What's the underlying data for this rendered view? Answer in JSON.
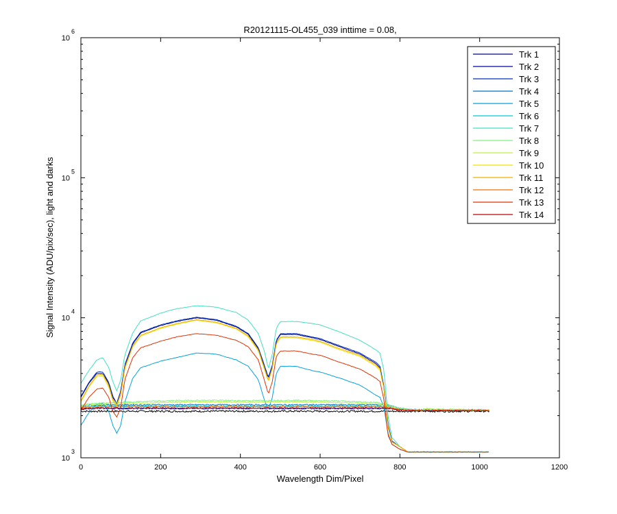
{
  "chart_data": {
    "type": "line",
    "title": "R20121115-OL455_039 inttime = 0.08,",
    "xlabel": "Wavelength Dim/Pixel",
    "ylabel": "Signal Intensity (ADU/pix/sec), light and darks",
    "xlim": [
      0,
      1200
    ],
    "ylim": [
      1000,
      1000000
    ],
    "yscale": "log",
    "grid": false,
    "legend_position": "top-right",
    "x_ticks": [
      "0",
      "200",
      "400",
      "600",
      "800",
      "1000",
      "1200"
    ],
    "y_ticks": [
      {
        "base": "10",
        "exp": "3"
      },
      {
        "base": "10",
        "exp": "4"
      },
      {
        "base": "10",
        "exp": "5"
      },
      {
        "base": "10",
        "exp": "6"
      }
    ],
    "x": [
      0,
      20,
      40,
      55,
      70,
      80,
      90,
      100,
      110,
      130,
      150,
      200,
      240,
      290,
      340,
      390,
      420,
      445,
      460,
      470,
      480,
      490,
      500,
      540,
      580,
      600,
      650,
      700,
      740,
      750,
      760,
      770,
      780,
      800,
      820,
      850,
      870,
      880,
      900,
      1024
    ],
    "series": [
      {
        "name": "Trk 1",
        "color": "#000080",
        "values": [
          2700,
          3400,
          4000,
          4000,
          3400,
          2700,
          2450,
          3000,
          4500,
          6500,
          7800,
          8800,
          9400,
          10000,
          9600,
          8600,
          7600,
          6000,
          4500,
          3700,
          4500,
          6800,
          7600,
          7600,
          7200,
          7000,
          6200,
          5500,
          4700,
          4400,
          3200,
          1700,
          1300,
          1200,
          1100,
          1100,
          1100,
          1100,
          1100,
          1100
        ]
      },
      {
        "name": "Trk 2",
        "color": "#0000b0",
        "values": [
          2200,
          2250,
          2250,
          2250,
          2250,
          2250,
          2250,
          2250,
          2250,
          2250,
          2250,
          2250,
          2250,
          2250,
          2250,
          2250,
          2250,
          2250,
          2250,
          2250,
          2250,
          2250,
          2250,
          2250,
          2250,
          2250,
          2250,
          2250,
          2250,
          2250,
          2250,
          2250,
          2250,
          2200,
          2200,
          2180,
          2180,
          2180,
          2180,
          2180
        ]
      },
      {
        "name": "Trk 3",
        "color": "#0030c0",
        "values": [
          2750,
          3450,
          4100,
          4100,
          3450,
          2750,
          2450,
          3000,
          4600,
          6600,
          7900,
          8900,
          9500,
          10100,
          9700,
          8700,
          7700,
          6100,
          4600,
          3750,
          4600,
          6900,
          7700,
          7700,
          7300,
          7100,
          6300,
          5600,
          4800,
          4500,
          3250,
          1750,
          1320,
          1200,
          1100,
          1100,
          1100,
          1100,
          1100,
          1100
        ]
      },
      {
        "name": "Trk 4",
        "color": "#0070c0",
        "values": [
          2350,
          2380,
          2380,
          2390,
          2390,
          2390,
          2390,
          2390,
          2390,
          2390,
          2390,
          2390,
          2390,
          2390,
          2390,
          2390,
          2390,
          2390,
          2390,
          2390,
          2390,
          2390,
          2390,
          2390,
          2390,
          2390,
          2390,
          2390,
          2390,
          2390,
          2390,
          2380,
          2350,
          2250,
          2220,
          2200,
          2200,
          2200,
          2200,
          2200
        ]
      },
      {
        "name": "Trk 5",
        "color": "#00a0e0",
        "values": [
          1700,
          2100,
          2400,
          2450,
          2150,
          1700,
          1500,
          1700,
          2500,
          3700,
          4400,
          4900,
          5200,
          5600,
          5500,
          5000,
          4500,
          3600,
          2600,
          2200,
          2700,
          4000,
          4500,
          4500,
          4200,
          4100,
          3700,
          3300,
          2800,
          2700,
          2300,
          1500,
          1250,
          1150,
          1100,
          1100,
          1100,
          1100,
          1100,
          1100
        ]
      },
      {
        "name": "Trk 6",
        "color": "#00c8d8",
        "values": [
          2300,
          2320,
          2330,
          2340,
          2340,
          2340,
          2340,
          2340,
          2340,
          2340,
          2340,
          2340,
          2340,
          2340,
          2340,
          2340,
          2340,
          2340,
          2340,
          2340,
          2340,
          2340,
          2340,
          2340,
          2340,
          2340,
          2340,
          2340,
          2340,
          2340,
          2340,
          2330,
          2300,
          2220,
          2200,
          2180,
          2180,
          2180,
          2180,
          2180
        ]
      },
      {
        "name": "Trk 7",
        "color": "#40e0c0",
        "values": [
          3400,
          4200,
          5000,
          5200,
          4400,
          3500,
          3000,
          3600,
          5400,
          7800,
          9500,
          10800,
          11600,
          12200,
          11900,
          10900,
          9600,
          7700,
          5800,
          4300,
          5500,
          8400,
          9400,
          9400,
          9100,
          8900,
          7900,
          6900,
          5900,
          5600,
          4200,
          2000,
          1400,
          1200,
          1100,
          1100,
          1100,
          1100,
          1100,
          1100
        ]
      },
      {
        "name": "Trk 8",
        "color": "#80f080",
        "values": [
          2380,
          2420,
          2450,
          2460,
          2470,
          2480,
          2480,
          2480,
          2490,
          2500,
          2520,
          2540,
          2560,
          2570,
          2570,
          2560,
          2560,
          2560,
          2560,
          2560,
          2560,
          2570,
          2570,
          2570,
          2560,
          2560,
          2540,
          2510,
          2480,
          2460,
          2430,
          2400,
          2350,
          2260,
          2220,
          2200,
          2250,
          2220,
          2220,
          2200
        ]
      },
      {
        "name": "Trk 9",
        "color": "#c0f040",
        "values": [
          2350,
          2380,
          2400,
          2410,
          2420,
          2420,
          2430,
          2430,
          2440,
          2450,
          2460,
          2480,
          2500,
          2510,
          2510,
          2500,
          2500,
          2500,
          2500,
          2500,
          2500,
          2510,
          2510,
          2510,
          2500,
          2500,
          2480,
          2450,
          2420,
          2400,
          2380,
          2350,
          2300,
          2230,
          2200,
          2190,
          2240,
          2210,
          2210,
          2200
        ]
      },
      {
        "name": "Trk 10",
        "color": "#f0e000",
        "values": [
          2500,
          3200,
          3800,
          3850,
          3200,
          2550,
          2350,
          2800,
          4300,
          6200,
          7400,
          8400,
          9000,
          9600,
          9200,
          8300,
          7300,
          5800,
          4300,
          3500,
          4300,
          6500,
          7200,
          7200,
          6900,
          6700,
          5900,
          5300,
          4500,
          4200,
          3100,
          1650,
          1300,
          1200,
          1100,
          1100,
          1100,
          1100,
          1100,
          1100
        ]
      },
      {
        "name": "Trk 11",
        "color": "#f0b000",
        "values": [
          2550,
          3250,
          3900,
          3950,
          3300,
          2600,
          2400,
          2850,
          4400,
          6300,
          7500,
          8500,
          9100,
          9700,
          9300,
          8400,
          7400,
          5900,
          4400,
          3550,
          4400,
          6600,
          7300,
          7300,
          7000,
          6800,
          6000,
          5400,
          4600,
          4300,
          3150,
          1680,
          1300,
          1200,
          1100,
          1100,
          1100,
          1100,
          1100,
          1100
        ]
      },
      {
        "name": "Trk 12",
        "color": "#f07000",
        "values": [
          2280,
          2300,
          2310,
          2320,
          2320,
          2320,
          2320,
          2320,
          2320,
          2320,
          2320,
          2320,
          2320,
          2320,
          2320,
          2320,
          2320,
          2320,
          2320,
          2320,
          2320,
          2320,
          2320,
          2320,
          2320,
          2320,
          2320,
          2320,
          2320,
          2320,
          2310,
          2300,
          2270,
          2210,
          2190,
          2180,
          2180,
          2180,
          2180,
          2180
        ]
      },
      {
        "name": "Trk 13",
        "color": "#e03000",
        "values": [
          2200,
          2700,
          3100,
          3150,
          2700,
          2150,
          1950,
          2300,
          3600,
          5200,
          6100,
          6800,
          7300,
          7700,
          7500,
          6900,
          6200,
          5000,
          3600,
          2850,
          3500,
          5300,
          5800,
          5800,
          5500,
          5400,
          4800,
          4300,
          3700,
          3500,
          2600,
          1450,
          1250,
          1150,
          1100,
          1100,
          1100,
          1100,
          1100,
          1100
        ]
      },
      {
        "name": "Trk 14",
        "color": "#c00000",
        "values": [
          2250,
          2260,
          2270,
          2270,
          2270,
          2270,
          2270,
          2270,
          2270,
          2270,
          2270,
          2270,
          2270,
          2270,
          2270,
          2270,
          2270,
          2270,
          2270,
          2270,
          2270,
          2270,
          2270,
          2270,
          2270,
          2270,
          2270,
          2270,
          2270,
          2270,
          2260,
          2250,
          2230,
          2200,
          2180,
          2170,
          2170,
          2170,
          2170,
          2170
        ]
      }
    ],
    "extra_dark_trace": {
      "color": "#000000",
      "level": 2150
    }
  }
}
